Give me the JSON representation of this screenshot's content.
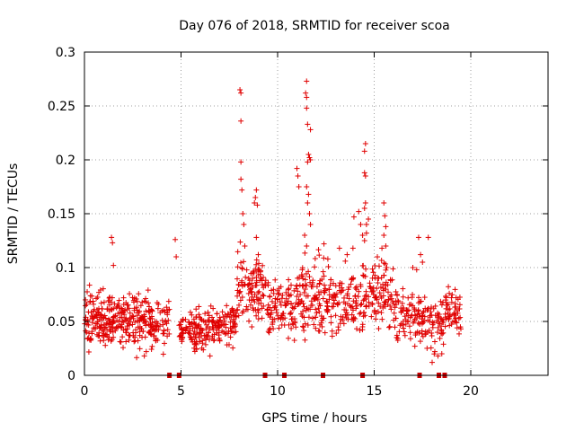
{
  "chart_data": {
    "type": "scatter",
    "title": "Day 076 of 2018, SRMTID for receiver scoa",
    "xlabel": "GPS time / hours",
    "ylabel": "SRMTID / TECUs",
    "xlim": [
      0,
      24
    ],
    "ylim": [
      0,
      0.3
    ],
    "grid": true,
    "marker": "plus",
    "color": "#e00000",
    "x_ticks": [
      0,
      5,
      10,
      15,
      20
    ],
    "y_ticks": [
      0,
      0.05,
      0.1,
      0.15,
      0.2,
      0.25,
      0.3
    ],
    "x_tick_labels": [
      "0",
      "5",
      "10",
      "15",
      "20"
    ],
    "y_tick_labels": [
      "0",
      "0.05",
      "0.1",
      "0.15",
      "0.2",
      "0.25",
      "0.3"
    ],
    "gap_markers_x": [
      4.4,
      4.9,
      9.35,
      10.35,
      12.35,
      14.4,
      17.35,
      18.35,
      18.65
    ],
    "segments": [
      {
        "x0": 0.0,
        "x1": 1.0,
        "mean": 0.052,
        "spread": 0.018,
        "n": 85
      },
      {
        "x0": 1.0,
        "x1": 2.0,
        "mean": 0.05,
        "spread": 0.018,
        "n": 85
      },
      {
        "x0": 2.0,
        "x1": 3.3,
        "mean": 0.052,
        "spread": 0.02,
        "n": 100
      },
      {
        "x0": 3.3,
        "x1": 4.4,
        "mean": 0.047,
        "spread": 0.018,
        "n": 75
      },
      {
        "x0": 4.9,
        "x1": 6.5,
        "mean": 0.042,
        "spread": 0.015,
        "n": 110
      },
      {
        "x0": 6.5,
        "x1": 7.9,
        "mean": 0.045,
        "spread": 0.016,
        "n": 95
      },
      {
        "x0": 7.9,
        "x1": 9.4,
        "mean": 0.08,
        "spread": 0.025,
        "n": 105
      },
      {
        "x0": 9.4,
        "x1": 11.0,
        "mean": 0.062,
        "spread": 0.022,
        "n": 100
      },
      {
        "x0": 11.0,
        "x1": 12.4,
        "mean": 0.075,
        "spread": 0.028,
        "n": 100
      },
      {
        "x0": 12.4,
        "x1": 14.4,
        "mean": 0.068,
        "spread": 0.024,
        "n": 120
      },
      {
        "x0": 14.4,
        "x1": 16.0,
        "mean": 0.075,
        "spread": 0.025,
        "n": 105
      },
      {
        "x0": 16.0,
        "x1": 17.4,
        "mean": 0.058,
        "spread": 0.02,
        "n": 85
      },
      {
        "x0": 17.4,
        "x1": 18.6,
        "mean": 0.048,
        "spread": 0.018,
        "n": 70
      },
      {
        "x0": 18.6,
        "x1": 19.5,
        "mean": 0.06,
        "spread": 0.016,
        "n": 55
      }
    ],
    "notable_points": [
      {
        "x": 1.4,
        "y": 0.128
      },
      {
        "x": 1.45,
        "y": 0.123
      },
      {
        "x": 1.5,
        "y": 0.102
      },
      {
        "x": 4.7,
        "y": 0.126
      },
      {
        "x": 4.75,
        "y": 0.11
      },
      {
        "x": 8.05,
        "y": 0.265
      },
      {
        "x": 8.1,
        "y": 0.262
      },
      {
        "x": 8.1,
        "y": 0.236
      },
      {
        "x": 8.1,
        "y": 0.198
      },
      {
        "x": 8.1,
        "y": 0.182
      },
      {
        "x": 8.15,
        "y": 0.172
      },
      {
        "x": 8.2,
        "y": 0.15
      },
      {
        "x": 8.3,
        "y": 0.12
      },
      {
        "x": 8.25,
        "y": 0.14
      },
      {
        "x": 8.9,
        "y": 0.172
      },
      {
        "x": 8.85,
        "y": 0.165
      },
      {
        "x": 8.8,
        "y": 0.16
      },
      {
        "x": 8.95,
        "y": 0.158
      },
      {
        "x": 8.9,
        "y": 0.128
      },
      {
        "x": 9.0,
        "y": 0.112
      },
      {
        "x": 11.0,
        "y": 0.192
      },
      {
        "x": 11.05,
        "y": 0.185
      },
      {
        "x": 11.1,
        "y": 0.175
      },
      {
        "x": 11.5,
        "y": 0.273
      },
      {
        "x": 11.45,
        "y": 0.262
      },
      {
        "x": 11.5,
        "y": 0.258
      },
      {
        "x": 11.5,
        "y": 0.248
      },
      {
        "x": 11.55,
        "y": 0.233
      },
      {
        "x": 11.7,
        "y": 0.228
      },
      {
        "x": 11.6,
        "y": 0.205
      },
      {
        "x": 11.65,
        "y": 0.202
      },
      {
        "x": 11.55,
        "y": 0.198
      },
      {
        "x": 11.7,
        "y": 0.2
      },
      {
        "x": 11.5,
        "y": 0.175
      },
      {
        "x": 11.6,
        "y": 0.168
      },
      {
        "x": 11.55,
        "y": 0.16
      },
      {
        "x": 11.65,
        "y": 0.15
      },
      {
        "x": 11.7,
        "y": 0.14
      },
      {
        "x": 11.4,
        "y": 0.13
      },
      {
        "x": 11.5,
        "y": 0.12
      },
      {
        "x": 12.4,
        "y": 0.122
      },
      {
        "x": 12.6,
        "y": 0.108
      },
      {
        "x": 13.2,
        "y": 0.118
      },
      {
        "x": 13.6,
        "y": 0.112
      },
      {
        "x": 13.9,
        "y": 0.118
      },
      {
        "x": 14.3,
        "y": 0.14
      },
      {
        "x": 14.4,
        "y": 0.13
      },
      {
        "x": 14.5,
        "y": 0.125
      },
      {
        "x": 14.55,
        "y": 0.215
      },
      {
        "x": 14.5,
        "y": 0.208
      },
      {
        "x": 14.5,
        "y": 0.188
      },
      {
        "x": 14.55,
        "y": 0.185
      },
      {
        "x": 14.55,
        "y": 0.16
      },
      {
        "x": 14.5,
        "y": 0.155
      },
      {
        "x": 14.6,
        "y": 0.14
      },
      {
        "x": 14.6,
        "y": 0.132
      },
      {
        "x": 14.7,
        "y": 0.145
      },
      {
        "x": 14.2,
        "y": 0.152
      },
      {
        "x": 13.95,
        "y": 0.147
      },
      {
        "x": 15.5,
        "y": 0.16
      },
      {
        "x": 15.55,
        "y": 0.148
      },
      {
        "x": 15.6,
        "y": 0.138
      },
      {
        "x": 15.5,
        "y": 0.13
      },
      {
        "x": 15.6,
        "y": 0.12
      },
      {
        "x": 15.4,
        "y": 0.118
      },
      {
        "x": 17.3,
        "y": 0.128
      },
      {
        "x": 17.4,
        "y": 0.112
      },
      {
        "x": 17.5,
        "y": 0.105
      },
      {
        "x": 17.2,
        "y": 0.098
      },
      {
        "x": 17.8,
        "y": 0.128
      },
      {
        "x": 17.0,
        "y": 0.1
      },
      {
        "x": 18.0,
        "y": 0.012
      },
      {
        "x": 18.3,
        "y": 0.018
      },
      {
        "x": 18.5,
        "y": 0.02
      },
      {
        "x": 3.1,
        "y": 0.018
      },
      {
        "x": 3.2,
        "y": 0.022
      },
      {
        "x": 6.5,
        "y": 0.018
      }
    ]
  }
}
